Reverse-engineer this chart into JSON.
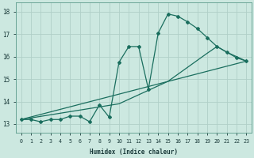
{
  "xlabel": "Humidex (Indice chaleur)",
  "bg_color": "#cce8e0",
  "grid_color": "#b0cfc8",
  "line_color": "#1a6e5e",
  "xlim": [
    -0.5,
    23.5
  ],
  "ylim": [
    12.6,
    18.4
  ],
  "xticks": [
    0,
    1,
    2,
    3,
    4,
    5,
    6,
    7,
    8,
    9,
    10,
    11,
    12,
    13,
    14,
    15,
    16,
    17,
    18,
    19,
    20,
    21,
    22,
    23
  ],
  "yticks": [
    13,
    14,
    15,
    16,
    17,
    18
  ],
  "line1_x": [
    0,
    1,
    2,
    3,
    4,
    5,
    6,
    7,
    8,
    9,
    10,
    11,
    12,
    13,
    14,
    15,
    16,
    17,
    18,
    19,
    20,
    21,
    22,
    23
  ],
  "line1_y": [
    13.2,
    13.2,
    13.1,
    13.2,
    13.2,
    13.35,
    13.35,
    13.1,
    13.85,
    13.3,
    15.75,
    16.45,
    16.45,
    14.55,
    17.05,
    17.9,
    17.8,
    17.55,
    17.25,
    16.85,
    16.45,
    16.2,
    15.95,
    15.8
  ],
  "line2_x": [
    0,
    10,
    14,
    15,
    19,
    20,
    21,
    22,
    23
  ],
  "line2_y": [
    13.2,
    13.9,
    14.7,
    14.9,
    16.15,
    16.45,
    16.2,
    16.0,
    15.8
  ],
  "line3_x": [
    0,
    23
  ],
  "line3_y": [
    13.2,
    15.8
  ]
}
